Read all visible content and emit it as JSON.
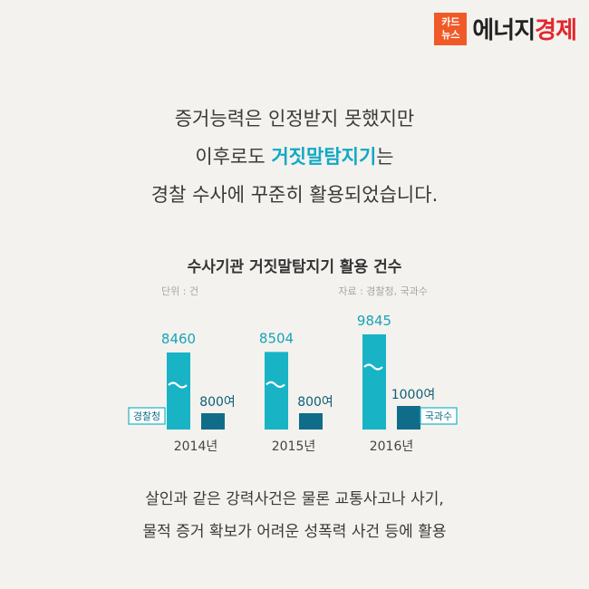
{
  "logo": {
    "badge_line1": "카드",
    "badge_line2": "뉴스",
    "name_part1": "에너지",
    "name_part2": "경제"
  },
  "headline": {
    "line1": "증거능력은 인정받지 못했지만",
    "line2_before": "이후로도 ",
    "line2_highlight": "거짓말탐지기",
    "line2_after": "는",
    "line3": "경찰 수사에 꾸준히 활용되었습니다."
  },
  "chart_data": {
    "type": "bar",
    "title": "수사기관 거짓말탐지기 활용 건수",
    "unit_label": "단위 : 건",
    "source_label": "자료 : 경찰청, 국과수",
    "categories": [
      "2014년",
      "2015년",
      "2016년"
    ],
    "series": [
      {
        "name": "경찰청",
        "values": [
          8460,
          8504,
          9845
        ],
        "labels": [
          "8460",
          "8504",
          "9845"
        ],
        "color": "#19b3c6"
      },
      {
        "name": "국과수",
        "values": [
          800,
          800,
          1000
        ],
        "labels": [
          "800여",
          "800여",
          "1000여"
        ],
        "color": "#0f6d89"
      }
    ],
    "axis_break": true,
    "legend": "inline-labels"
  },
  "footer": {
    "line1": "살인과 같은 강력사건은 물론 교통사고나 사기,",
    "line2": "물적 증거 확보가 어려운 성폭력 사건 등에 활용"
  }
}
